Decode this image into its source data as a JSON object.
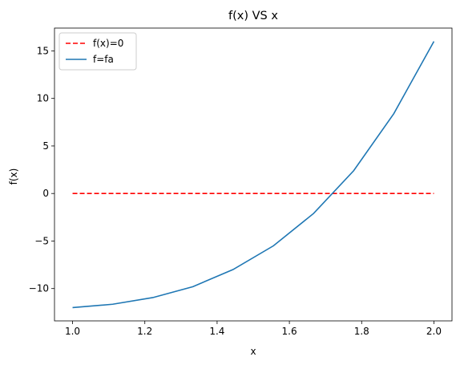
{
  "chart_data": {
    "type": "line",
    "title": "f(x) VS x",
    "xlabel": "x",
    "ylabel": "f(x)",
    "xlim": [
      0.95,
      2.05
    ],
    "ylim": [
      -13.4,
      17.4
    ],
    "xticks": [
      1.0,
      1.2,
      1.4,
      1.6,
      1.8,
      2.0
    ],
    "xtick_labels": [
      "1.0",
      "1.2",
      "1.4",
      "1.6",
      "1.8",
      "2.0"
    ],
    "yticks": [
      -10,
      -5,
      0,
      5,
      10,
      15
    ],
    "ytick_labels": [
      "−10",
      "−5",
      "0",
      "5",
      "10",
      "15"
    ],
    "grid": false,
    "legend_position": "top-left",
    "series": [
      {
        "name": "f(x)=0",
        "color": "#ff0000",
        "style": "dashed",
        "x": [
          1.0,
          2.0
        ],
        "y": [
          0,
          0
        ]
      },
      {
        "name": "f=fa",
        "color": "#1f77b4",
        "style": "solid",
        "x": [
          1.0,
          1.111,
          1.222,
          1.333,
          1.444,
          1.556,
          1.667,
          1.778,
          1.889,
          2.0
        ],
        "y": [
          -12.0,
          -11.65,
          -10.95,
          -9.8,
          -8.0,
          -5.5,
          -2.1,
          2.4,
          8.4,
          16.0
        ]
      }
    ]
  }
}
